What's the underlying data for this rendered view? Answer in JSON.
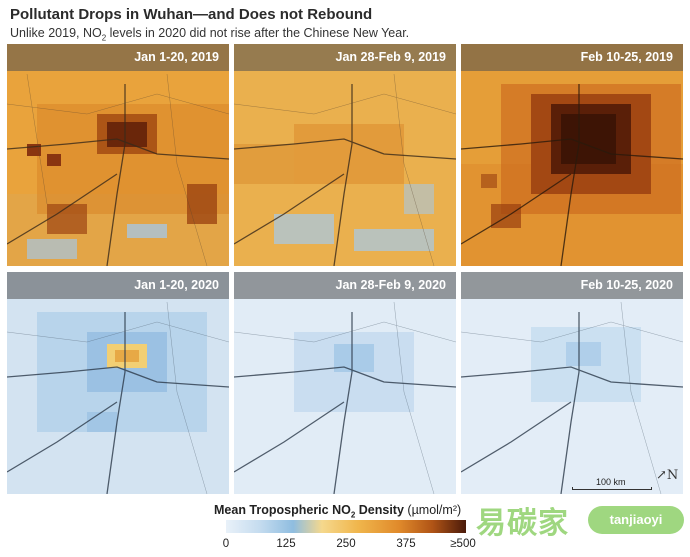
{
  "title": "Pollutant Drops in Wuhan—and Does not Rebound",
  "subtitle_pre": "Unlike 2019, NO",
  "subtitle_sub": "2",
  "subtitle_post": " levels in 2020 did not rise after the Chinese New Year.",
  "panels": [
    {
      "label": "Jan 1-20, 2019",
      "theme": "orange-mid"
    },
    {
      "label": "Jan 28-Feb 9, 2019",
      "theme": "orange-light"
    },
    {
      "label": "Feb 10-25, 2019",
      "theme": "orange-heavy"
    },
    {
      "label": "Jan 1-20, 2020",
      "theme": "blue-hotspot"
    },
    {
      "label": "Jan 28-Feb 9, 2020",
      "theme": "blue-light"
    },
    {
      "label": "Feb 10-25, 2020",
      "theme": "blue-light"
    }
  ],
  "scale_label": "100 km",
  "north_symbol": "↗N",
  "legend": {
    "title_pre": "Mean Tropospheric NO",
    "title_sub": "2",
    "title_post": " Density",
    "unit": "(µmol/m²)",
    "ticks": [
      "0",
      "125",
      "250",
      "375",
      "≥500"
    ]
  },
  "watermark": {
    "text": "易碳家",
    "pill": "tanjiaoyi"
  },
  "colors": {
    "orange": "#e9a23a",
    "dark": "#5a1f08",
    "blue": "#cfe0f0"
  }
}
